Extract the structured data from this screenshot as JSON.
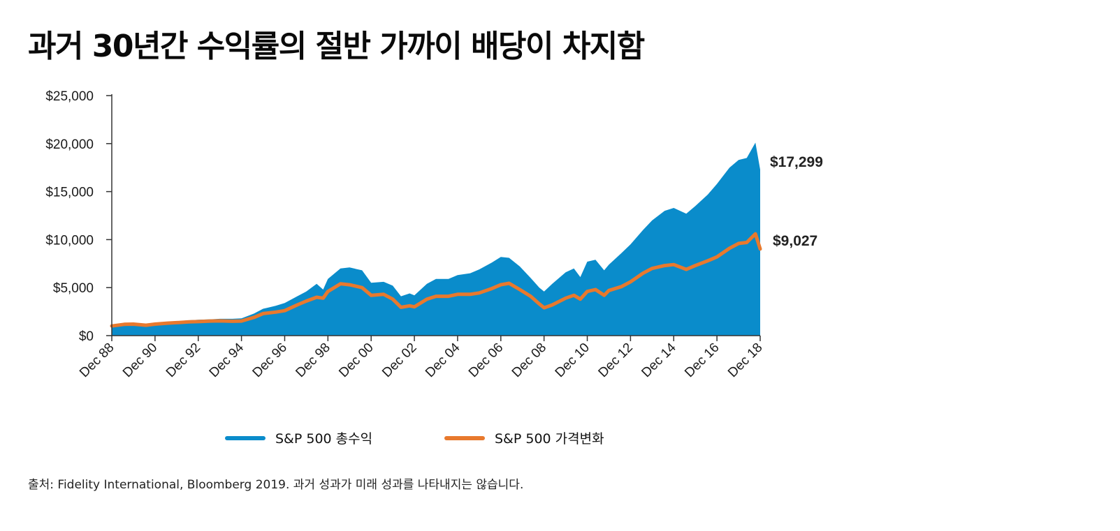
{
  "title": "과거 30년간 수익률의 절반 가까이 배당이 차지함",
  "source": "출처:  Fidelity International, Bloomberg 2019. 과거 성과가 미래 성과를 나타내지는 않습니다.",
  "colors": {
    "total_return": "#0a8ccb",
    "price_change": "#e8792d",
    "axis": "#333333"
  },
  "chart_data": {
    "type": "area",
    "title": "",
    "xlabel": "",
    "ylabel": "",
    "ylim": [
      0,
      25000
    ],
    "xlim": [
      1988.92,
      2018.92
    ],
    "grid": false,
    "legend_position": "bottom-center",
    "yticks": [
      0,
      5000,
      10000,
      15000,
      20000,
      25000
    ],
    "ytick_labels": [
      "$0",
      "$5,000",
      "$10,000",
      "$15,000",
      "$20,000",
      "$25,000"
    ],
    "xticks": [
      1988.92,
      1990.92,
      1992.92,
      1994.92,
      1996.92,
      1998.92,
      2000.92,
      2002.92,
      2004.92,
      2006.92,
      2008.92,
      2010.92,
      2012.92,
      2014.92,
      2016.92,
      2018.92
    ],
    "xtick_labels": [
      "Dec 88",
      "Dec 90",
      "Dec 92",
      "Dec 94",
      "Dec 96",
      "Dec 98",
      "Dec 00",
      "Dec 02",
      "Dec 04",
      "Dec 06",
      "Dec 08",
      "Dec 10",
      "Dec 12",
      "Dec 14",
      "Dec 16",
      "Dec 18"
    ],
    "x": [
      1988.92,
      1989.5,
      1989.92,
      1990.5,
      1990.92,
      1991.5,
      1991.92,
      1992.5,
      1992.92,
      1993.5,
      1993.92,
      1994.5,
      1994.92,
      1995.5,
      1995.92,
      1996.5,
      1996.92,
      1997.5,
      1997.92,
      1998.4,
      1998.7,
      1998.92,
      1999.5,
      1999.92,
      2000.5,
      2000.92,
      2001.5,
      2001.92,
      2002.3,
      2002.7,
      2002.92,
      2003.5,
      2003.92,
      2004.5,
      2004.92,
      2005.5,
      2005.92,
      2006.5,
      2006.92,
      2007.3,
      2007.8,
      2008.3,
      2008.7,
      2008.92,
      2009.3,
      2009.92,
      2010.3,
      2010.6,
      2010.92,
      2011.3,
      2011.7,
      2011.92,
      2012.5,
      2012.92,
      2013.5,
      2013.92,
      2014.5,
      2014.92,
      2015.5,
      2015.92,
      2016.5,
      2016.92,
      2017.5,
      2017.92,
      2018.3,
      2018.7,
      2018.92
    ],
    "series": [
      {
        "name": "S&P 500 총수익",
        "values": [
          1000,
          1250,
          1300,
          1200,
          1350,
          1450,
          1500,
          1600,
          1650,
          1700,
          1750,
          1750,
          1800,
          2300,
          2800,
          3100,
          3400,
          4100,
          4600,
          5400,
          4800,
          5900,
          7000,
          7100,
          6800,
          5500,
          5600,
          5200,
          4100,
          4400,
          4200,
          5400,
          5900,
          5900,
          6300,
          6500,
          6900,
          7600,
          8200,
          8100,
          7200,
          6000,
          5000,
          4600,
          5400,
          6600,
          7000,
          6100,
          7700,
          7900,
          6800,
          7400,
          8600,
          9500,
          11000,
          12000,
          13000,
          13300,
          12700,
          13500,
          14700,
          15800,
          17500,
          18300,
          18500,
          20100,
          17299
        ],
        "end_label": "$17,299"
      },
      {
        "name": "S&P 500 가격변화",
        "values": [
          1000,
          1180,
          1200,
          1080,
          1200,
          1300,
          1350,
          1430,
          1460,
          1520,
          1530,
          1500,
          1520,
          1900,
          2300,
          2450,
          2600,
          3200,
          3600,
          4000,
          3900,
          4600,
          5400,
          5300,
          5000,
          4200,
          4300,
          3800,
          2950,
          3100,
          3000,
          3800,
          4100,
          4100,
          4300,
          4300,
          4450,
          4900,
          5300,
          5450,
          4800,
          4100,
          3300,
          2900,
          3200,
          3900,
          4200,
          3800,
          4600,
          4800,
          4200,
          4700,
          5100,
          5600,
          6500,
          7000,
          7300,
          7400,
          6900,
          7300,
          7800,
          8200,
          9100,
          9600,
          9700,
          10600,
          9027
        ],
        "end_label": "$9,027"
      }
    ]
  }
}
